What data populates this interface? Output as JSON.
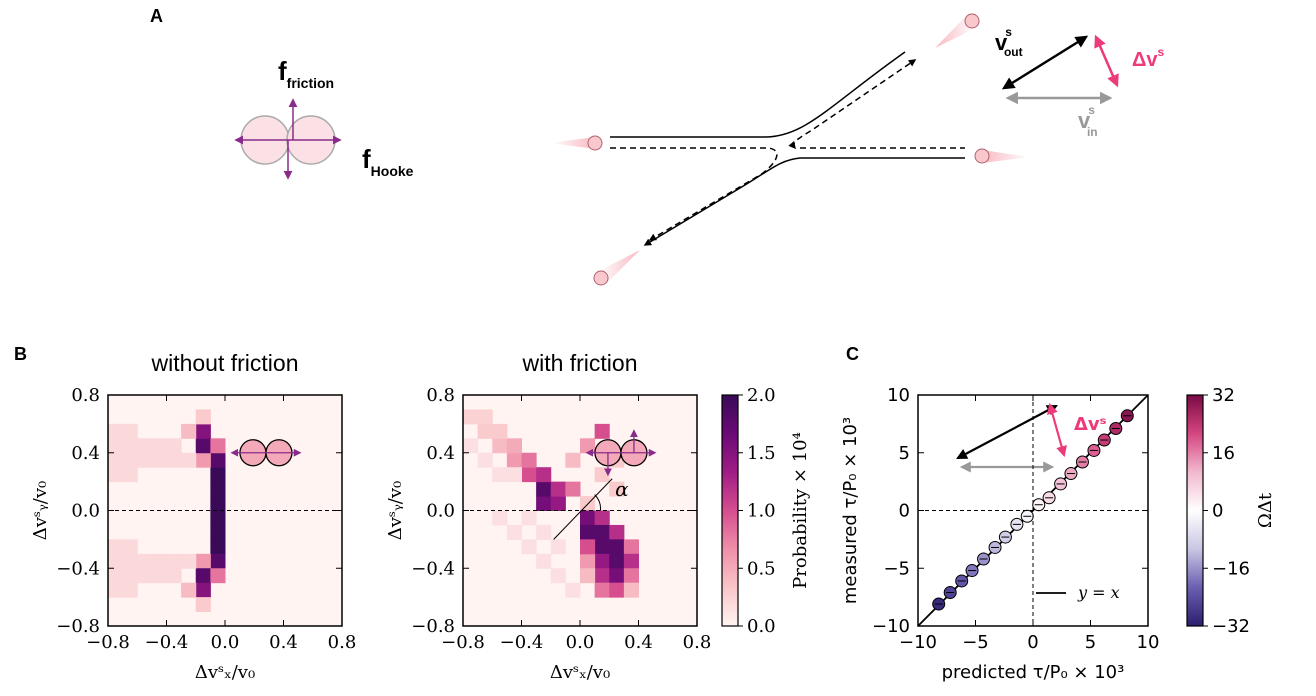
{
  "panel_a": {
    "label": "A",
    "f_friction": {
      "main": "f",
      "sub": "friction"
    },
    "f_hooke": {
      "main": "f",
      "sub": "Hooke"
    },
    "v_out": {
      "main": "v",
      "sup": "s",
      "sub": "out"
    },
    "delta_v": {
      "main": "Δv",
      "sup": "s"
    },
    "v_in": {
      "main": "v",
      "sup": "s",
      "sub": "in"
    }
  },
  "chart_data": [
    {
      "type": "heatmap",
      "panel_label": "B",
      "title": "without friction",
      "xlabel": "Δvˢₓ/v₀",
      "ylabel": "Δvˢᵧ/v₀",
      "x": [
        -0.05,
        -0.05,
        -0.05,
        -0.05,
        -0.05,
        -0.05,
        -0.05,
        -0.05,
        -0.15,
        -0.15,
        -0.15,
        -0.15,
        -0.05,
        -0.05,
        -0.15,
        -0.15,
        -0.25,
        -0.25,
        -0.15,
        -0.15,
        -0.75,
        -0.75,
        -0.75,
        -0.75,
        -0.65,
        -0.65,
        -0.65,
        -0.65,
        -0.55,
        -0.55,
        -0.45,
        -0.45,
        -0.35,
        -0.35,
        -0.25,
        -0.75,
        -0.75,
        -0.75,
        -0.75,
        -0.65,
        -0.65,
        -0.65,
        -0.65,
        -0.55,
        -0.55,
        -0.45,
        -0.45,
        -0.35,
        -0.35,
        -0.25
      ],
      "y": [
        0.05,
        -0.05,
        0.15,
        -0.15,
        0.25,
        -0.25,
        0.35,
        -0.35,
        0.35,
        -0.35,
        0.45,
        -0.45,
        0.45,
        -0.45,
        0.55,
        -0.55,
        0.55,
        -0.55,
        0.65,
        -0.65,
        0.25,
        0.35,
        0.45,
        0.55,
        0.25,
        0.35,
        0.45,
        0.55,
        0.35,
        0.45,
        0.35,
        0.45,
        0.35,
        0.45,
        0.35,
        -0.25,
        -0.35,
        -0.45,
        -0.55,
        -0.25,
        -0.35,
        -0.45,
        -0.55,
        -0.35,
        -0.45,
        -0.35,
        -0.45,
        -0.35,
        -0.45,
        -0.35
      ],
      "values": [
        2,
        2,
        2,
        2,
        2,
        2,
        1.8,
        1.8,
        0.6,
        0.6,
        1.8,
        1.8,
        0.8,
        0.8,
        1.5,
        1.5,
        0.4,
        0.4,
        0.3,
        0.3,
        0.2,
        0.2,
        0.2,
        0.2,
        0.2,
        0.2,
        0.2,
        0.2,
        0.2,
        0.2,
        0.2,
        0.2,
        0.2,
        0.2,
        0.2,
        0.2,
        0.2,
        0.2,
        0.2,
        0.2,
        0.2,
        0.2,
        0.2,
        0.2,
        0.2,
        0.2,
        0.2,
        0.2,
        0.2,
        0.2
      ],
      "xlim": [
        -0.8,
        0.8
      ],
      "ylim": [
        -0.8,
        0.8
      ],
      "xticks": [
        {
          "value": -0.8,
          "label": "−0.8"
        },
        {
          "value": -0.4,
          "label": "−0.4"
        },
        {
          "value": 0,
          "label": "0.0"
        },
        0.4,
        0.8
      ],
      "yticks": [
        {
          "value": -0.8,
          "label": "−0.8"
        },
        {
          "value": -0.4,
          "label": "−0.4"
        },
        {
          "value": 0,
          "label": "0.0"
        },
        0.4,
        0.8
      ],
      "hline": 0,
      "clim": [
        0,
        2
      ],
      "colormap": [
        "#fff4f2",
        "#f9c6c9",
        "#ef8fa9",
        "#d64e8e",
        "#a01c86",
        "#6a0a76",
        "#3a0a58"
      ]
    },
    {
      "type": "heatmap",
      "title": "with friction",
      "xlabel": "Δvˢₓ/v₀",
      "ylabel": "Δvˢᵧ/v₀",
      "x": [
        -0.25,
        -0.15,
        -0.25,
        -0.15,
        -0.05,
        -0.35,
        -0.25,
        -0.45,
        -0.35,
        -0.05,
        -0.55,
        -0.45,
        0.05,
        -0.65,
        -0.55,
        0.15,
        -0.75,
        -0.65,
        0.25,
        0.15,
        0.25,
        0.05,
        0.05,
        0.15,
        0.05,
        0.15,
        0.25,
        0.15,
        0.25,
        0.35,
        0.15,
        0.25,
        0.35,
        0.15,
        0.25,
        0.35,
        0.15,
        0.25,
        0.35,
        0.05,
        0.05,
        0.05,
        -0.55,
        -0.35,
        -0.45,
        -0.25,
        -0.35,
        -0.15,
        -0.25,
        -0.15,
        -0.05,
        -0.65,
        -0.55,
        -0.75,
        -0.45
      ],
      "y": [
        0.05,
        0.05,
        0.15,
        0.15,
        0.15,
        0.25,
        0.25,
        0.35,
        0.35,
        0.35,
        0.45,
        0.45,
        0.45,
        0.55,
        0.55,
        0.55,
        0.65,
        0.65,
        0.15,
        0.25,
        0.35,
        0.05,
        -0.05,
        -0.05,
        -0.15,
        -0.15,
        -0.15,
        -0.25,
        -0.25,
        -0.25,
        -0.35,
        -0.35,
        -0.35,
        -0.45,
        -0.45,
        -0.45,
        -0.55,
        -0.55,
        -0.55,
        -0.35,
        -0.45,
        -0.25,
        -0.05,
        -0.05,
        -0.15,
        -0.15,
        -0.25,
        -0.25,
        -0.35,
        -0.45,
        -0.55,
        0.35,
        0.25,
        0.45,
        0.25
      ],
      "values": [
        1.6,
        1.4,
        1.8,
        1.2,
        0.8,
        1.0,
        1.2,
        0.6,
        0.8,
        0.4,
        0.4,
        0.5,
        0.6,
        0.3,
        0.3,
        1.0,
        0.25,
        0.25,
        0.3,
        0.3,
        0.3,
        0.3,
        1.6,
        1.2,
        1.8,
        1.8,
        1.2,
        1.8,
        1.8,
        0.8,
        1.4,
        1.8,
        1.2,
        1.2,
        1.6,
        0.8,
        0.8,
        1.0,
        0.4,
        0.6,
        0.4,
        1.0,
        0.15,
        0.15,
        0.15,
        0.15,
        0.15,
        0.15,
        0.15,
        0.15,
        0.15,
        0.15,
        0.15,
        0.15,
        0.15
      ],
      "xlim": [
        -0.8,
        0.8
      ],
      "ylim": [
        -0.8,
        0.8
      ],
      "xticks": [
        {
          "value": -0.8,
          "label": "−0.8"
        },
        {
          "value": -0.4,
          "label": "−0.4"
        },
        {
          "value": 0,
          "label": "0.0"
        },
        0.4,
        0.8
      ],
      "yticks": [
        {
          "value": -0.8,
          "label": "−0.8"
        },
        {
          "value": -0.4,
          "label": "−0.4"
        },
        {
          "value": 0,
          "label": "0.0"
        },
        0.4,
        0.8
      ],
      "hline": 0,
      "annotation": "α",
      "clim": [
        0,
        2
      ],
      "colormap": [
        "#fff4f2",
        "#f9c6c9",
        "#ef8fa9",
        "#d64e8e",
        "#a01c86",
        "#6a0a76",
        "#3a0a58"
      ],
      "colorbar": {
        "label": "Probability × 10⁴",
        "ticks": [
          {
            "value": 0,
            "label": "0.0"
          },
          0.5,
          {
            "value": 1,
            "label": "1.0"
          },
          1.5,
          {
            "value": 2,
            "label": "2.0"
          }
        ]
      }
    },
    {
      "type": "scatter",
      "panel_label": "C",
      "xlabel": "predicted τ/P₀ × 10³",
      "ylabel": "measured τ/P₀ × 10³",
      "x": [
        -8.2,
        -7.2,
        -6.2,
        -5.3,
        -4.3,
        -3.3,
        -2.4,
        -1.4,
        -0.5,
        0.5,
        1.4,
        2.4,
        3.3,
        4.3,
        5.3,
        6.2,
        7.2,
        8.2
      ],
      "y": [
        -8.1,
        -7.1,
        -6.1,
        -5.2,
        -4.2,
        -3.2,
        -2.3,
        -1.2,
        -0.5,
        0.5,
        1.1,
        2.3,
        3.2,
        4.2,
        5.2,
        6.1,
        7.1,
        8.2
      ],
      "color_values": [
        -30,
        -26,
        -23,
        -19,
        -16,
        -12,
        -9,
        -5,
        -2,
        2,
        5,
        9,
        12,
        16,
        19,
        23,
        26,
        30
      ],
      "xlim": [
        -10,
        10
      ],
      "ylim": [
        -10,
        10
      ],
      "xticks": [
        {
          "value": -10,
          "label": "−10"
        },
        {
          "value": -5,
          "label": "−5"
        },
        0,
        5,
        10
      ],
      "yticks": [
        {
          "value": -10,
          "label": "−10"
        },
        {
          "value": -5,
          "label": "−5"
        },
        0,
        5,
        10
      ],
      "hline": 0,
      "vline": 0,
      "annotation": "Δvˢ",
      "series": [
        {
          "name": "y = x",
          "color": "#000000",
          "x": [
            -10,
            10
          ],
          "y": [
            -10,
            10
          ]
        }
      ],
      "clim": [
        -32,
        32
      ],
      "colormap": [
        "#2d1e6e",
        "#6a5fb0",
        "#c9c6e4",
        "#ffffff",
        "#f2b8cf",
        "#d4467f",
        "#7a0a45"
      ],
      "colorbar": {
        "label": "ΩΔt",
        "ticks": [
          {
            "value": -32,
            "label": "−32"
          },
          {
            "value": -16,
            "label": "−16"
          },
          0,
          16,
          32
        ]
      }
    }
  ]
}
